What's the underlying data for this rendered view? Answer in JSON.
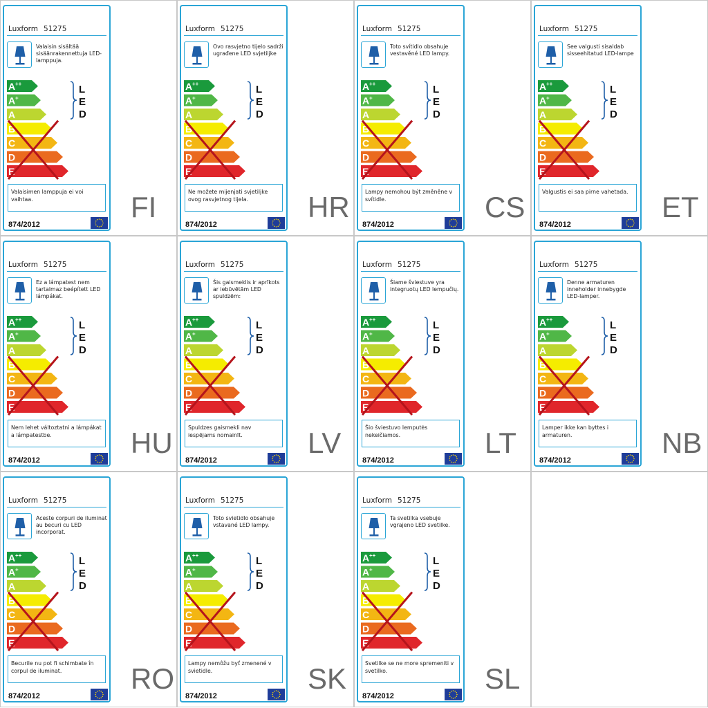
{
  "brand": "Luxform",
  "model": "51275",
  "regulation": "874/2012",
  "classes": [
    "A++",
    "A+",
    "A",
    "B",
    "C",
    "D",
    "E"
  ],
  "class_colors": [
    "#1a9a3c",
    "#50b747",
    "#bcd630",
    "#f5ec00",
    "#f3b613",
    "#ea6a1f",
    "#e0262b"
  ],
  "included_classes": [
    "A++",
    "A+",
    "A"
  ],
  "led_letters": [
    "L",
    "E",
    "D"
  ],
  "cross_color": "#b5141c",
  "frame_color": "#2aa5d6",
  "eu_flag_color": "#1f3d99",
  "icons": {
    "lamp": "table-lamp-icon",
    "flag": "eu-flag-icon",
    "cross": "excluded-classes-cross-icon"
  },
  "labels": [
    {
      "code": "FI",
      "intro": "Valaisin sisältää sisäänrakennettuja LED-lamppuja.",
      "note": "Valaisimen lamppuja ei voi vaihtaa."
    },
    {
      "code": "HR",
      "intro": "Ovo rasvjetno tijelo sadrži ugrađene LED svjetiljke",
      "note": "Ne možete mijenjati svjetiljke ovog rasvjetnog tijela."
    },
    {
      "code": "CS",
      "intro": "Toto svítidlo obsahuje vestavěné LED lampy.",
      "note": "Lampy nemohou být změněne v svítidle."
    },
    {
      "code": "ET",
      "intro": "See valgusti sisaldab sisseehitatud LED-lampe",
      "note": "Valgustis ei saa pirne vahetada."
    },
    {
      "code": "HU",
      "intro": "Ez a lámpatest nem tartalmaz beépített LED lámpákat.",
      "note": "Nem lehet változtatni a lámpákat a lámpatestbe."
    },
    {
      "code": "LV",
      "intro": "Šis gaismeklis ir aprīkots ar iebūvētām LED spuldzēm:",
      "note": "Spuldzes gaismekli nav iespējams nomainīt."
    },
    {
      "code": "LT",
      "intro": "Šiame šviestuve yra integruotų LED lempučių.",
      "note": "Šio šviestuvo lemputės nekeičiamos."
    },
    {
      "code": "NB",
      "intro": "Denne armaturen inneholder innebygde LED-lamper.",
      "note": "Lamper ikke kan byttes i armaturen."
    },
    {
      "code": "RO",
      "intro": "Aceste corpuri de iluminat au becuri cu LED incorporat.",
      "note": "Becurile nu pot fi schimbate în corpul de iluminat."
    },
    {
      "code": "SK",
      "intro": "Toto svietidlo obsahuje vstavané LED lampy.",
      "note": "Lampy nemôžu byť zmenené v svietidle."
    },
    {
      "code": "SL",
      "intro": "Ta svetilka vsebuje vgrajeno LED svetilke.",
      "note": "Svetilke se ne more spremeniti v svetilko."
    }
  ]
}
